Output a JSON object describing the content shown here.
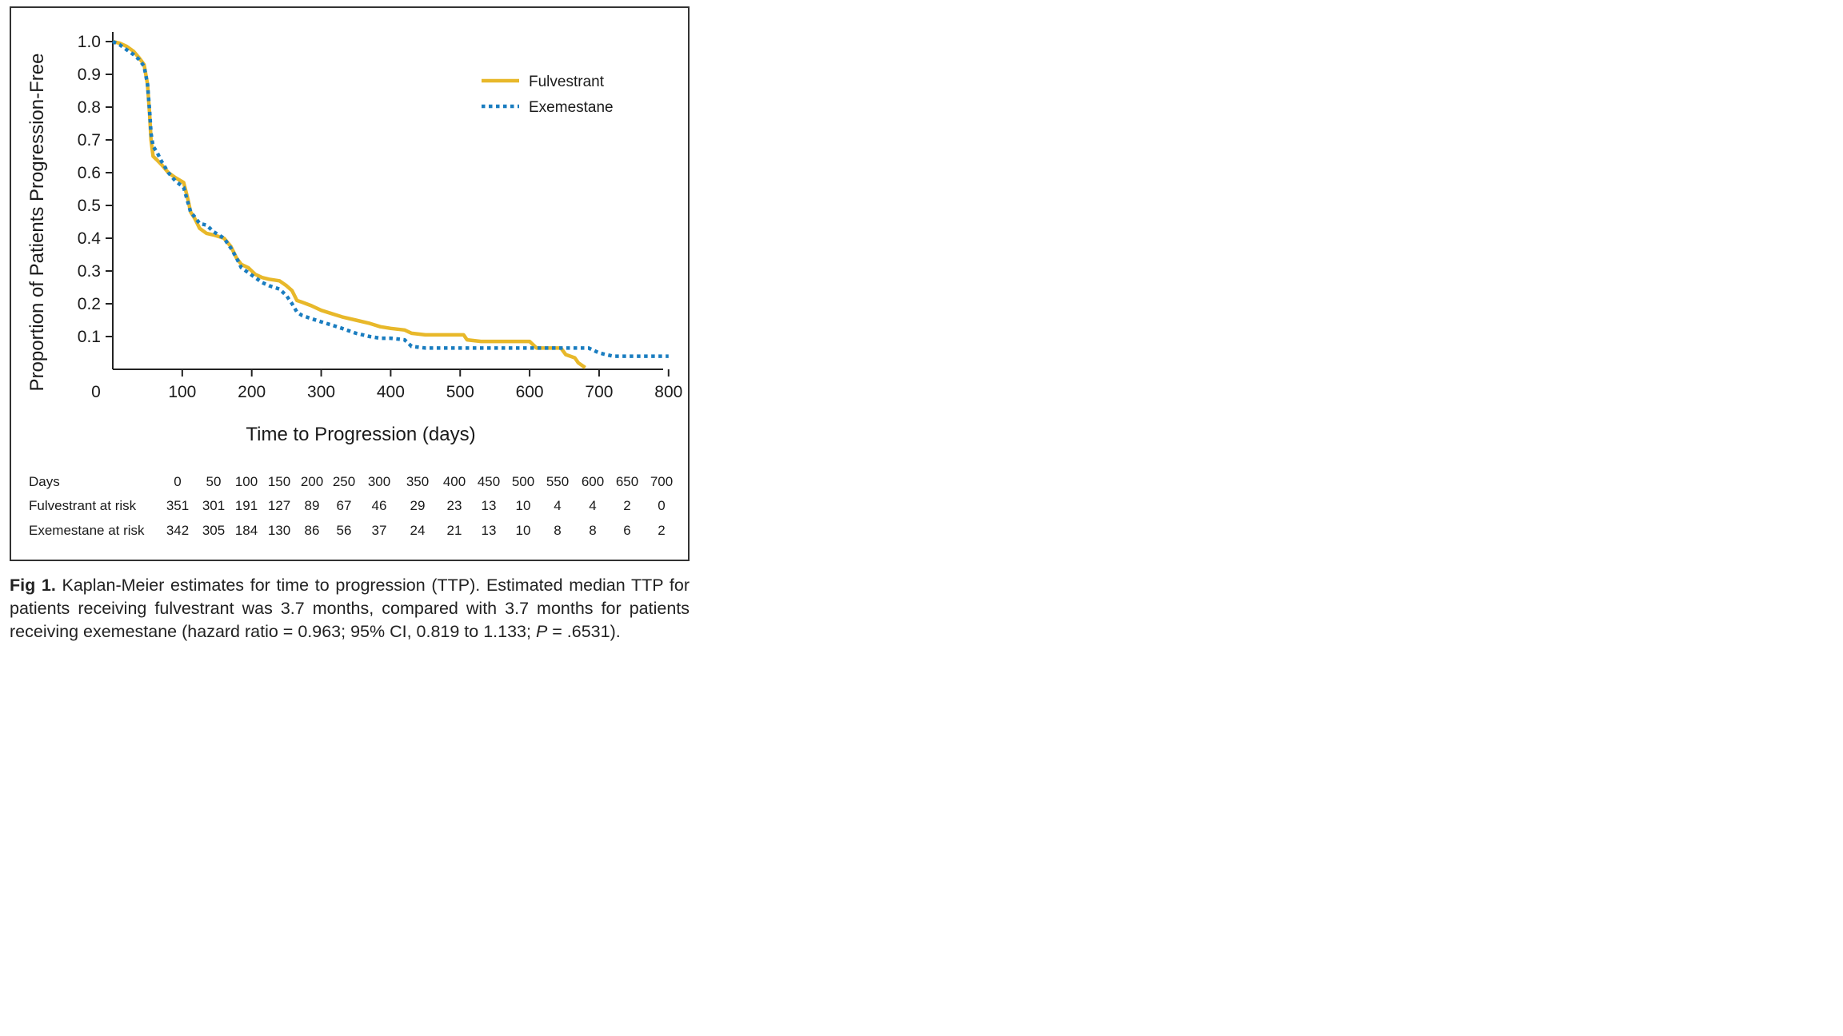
{
  "chart_data": {
    "type": "line",
    "ylabel": "Proportion of Patients Progression-Free",
    "xlabel": "Time to Progression (days)",
    "xlim": [
      0,
      800
    ],
    "ylim": [
      0,
      1.0
    ],
    "xticks": [
      0,
      100,
      200,
      300,
      400,
      500,
      600,
      700,
      800
    ],
    "yticks": [
      0.1,
      0.2,
      0.3,
      0.4,
      0.5,
      0.6,
      0.7,
      0.8,
      0.9,
      1.0
    ],
    "xtick_labels": [
      "0",
      "100",
      "200",
      "300",
      "400",
      "500",
      "600",
      "700",
      "800"
    ],
    "ytick_labels": [
      "0.1",
      "0.2",
      "0.3",
      "0.4",
      "0.5",
      "0.6",
      "0.7",
      "0.8",
      "0.9",
      "1.0"
    ],
    "grid": false,
    "legend": "top-right",
    "series": [
      {
        "name": "Fulvestrant",
        "color": "#E8B82A",
        "style": "solid",
        "points": [
          [
            0,
            1.0
          ],
          [
            10,
            0.995
          ],
          [
            20,
            0.985
          ],
          [
            30,
            0.97
          ],
          [
            38,
            0.95
          ],
          [
            45,
            0.93
          ],
          [
            50,
            0.87
          ],
          [
            53,
            0.78
          ],
          [
            55,
            0.7
          ],
          [
            58,
            0.65
          ],
          [
            63,
            0.64
          ],
          [
            70,
            0.625
          ],
          [
            80,
            0.6
          ],
          [
            90,
            0.585
          ],
          [
            102,
            0.57
          ],
          [
            108,
            0.52
          ],
          [
            112,
            0.48
          ],
          [
            118,
            0.46
          ],
          [
            125,
            0.43
          ],
          [
            135,
            0.415
          ],
          [
            145,
            0.41
          ],
          [
            160,
            0.4
          ],
          [
            170,
            0.375
          ],
          [
            178,
            0.34
          ],
          [
            185,
            0.32
          ],
          [
            195,
            0.31
          ],
          [
            205,
            0.29
          ],
          [
            215,
            0.28
          ],
          [
            225,
            0.275
          ],
          [
            240,
            0.27
          ],
          [
            250,
            0.255
          ],
          [
            258,
            0.24
          ],
          [
            265,
            0.21
          ],
          [
            272,
            0.205
          ],
          [
            285,
            0.195
          ],
          [
            300,
            0.18
          ],
          [
            315,
            0.17
          ],
          [
            330,
            0.16
          ],
          [
            350,
            0.15
          ],
          [
            370,
            0.14
          ],
          [
            385,
            0.13
          ],
          [
            400,
            0.125
          ],
          [
            420,
            0.12
          ],
          [
            430,
            0.11
          ],
          [
            450,
            0.105
          ],
          [
            470,
            0.105
          ],
          [
            505,
            0.105
          ],
          [
            510,
            0.09
          ],
          [
            530,
            0.085
          ],
          [
            560,
            0.085
          ],
          [
            600,
            0.085
          ],
          [
            610,
            0.065
          ],
          [
            645,
            0.065
          ],
          [
            652,
            0.045
          ],
          [
            665,
            0.035
          ],
          [
            670,
            0.02
          ],
          [
            680,
            0.005
          ]
        ]
      },
      {
        "name": "Exemestane",
        "color": "#1A7DC0",
        "style": "dotted",
        "points": [
          [
            0,
            1.0
          ],
          [
            10,
            0.99
          ],
          [
            20,
            0.975
          ],
          [
            30,
            0.96
          ],
          [
            38,
            0.945
          ],
          [
            45,
            0.925
          ],
          [
            50,
            0.87
          ],
          [
            53,
            0.79
          ],
          [
            55,
            0.72
          ],
          [
            58,
            0.68
          ],
          [
            63,
            0.665
          ],
          [
            70,
            0.635
          ],
          [
            80,
            0.6
          ],
          [
            90,
            0.575
          ],
          [
            102,
            0.555
          ],
          [
            108,
            0.51
          ],
          [
            112,
            0.48
          ],
          [
            118,
            0.465
          ],
          [
            125,
            0.445
          ],
          [
            135,
            0.44
          ],
          [
            145,
            0.42
          ],
          [
            160,
            0.4
          ],
          [
            170,
            0.37
          ],
          [
            178,
            0.34
          ],
          [
            185,
            0.31
          ],
          [
            195,
            0.295
          ],
          [
            205,
            0.28
          ],
          [
            215,
            0.265
          ],
          [
            225,
            0.255
          ],
          [
            240,
            0.245
          ],
          [
            250,
            0.225
          ],
          [
            258,
            0.2
          ],
          [
            265,
            0.175
          ],
          [
            272,
            0.165
          ],
          [
            285,
            0.155
          ],
          [
            300,
            0.145
          ],
          [
            315,
            0.135
          ],
          [
            330,
            0.125
          ],
          [
            350,
            0.11
          ],
          [
            370,
            0.1
          ],
          [
            385,
            0.095
          ],
          [
            400,
            0.095
          ],
          [
            420,
            0.09
          ],
          [
            430,
            0.07
          ],
          [
            450,
            0.065
          ],
          [
            470,
            0.065
          ],
          [
            505,
            0.065
          ],
          [
            530,
            0.065
          ],
          [
            560,
            0.065
          ],
          [
            600,
            0.065
          ],
          [
            610,
            0.065
          ],
          [
            650,
            0.065
          ],
          [
            665,
            0.065
          ],
          [
            685,
            0.065
          ],
          [
            700,
            0.05
          ],
          [
            720,
            0.04
          ],
          [
            760,
            0.04
          ],
          [
            800,
            0.04
          ]
        ]
      }
    ],
    "risk_table": {
      "header_label": "Days",
      "days": [
        "0",
        "50",
        "100",
        "150",
        "200",
        "250",
        "300",
        "350",
        "400",
        "450",
        "500",
        "550",
        "600",
        "650",
        "700"
      ],
      "rows": [
        {
          "label": "Fulvestrant at risk",
          "values": [
            "351",
            "301",
            "191",
            "127",
            "89",
            "67",
            "46",
            "29",
            "23",
            "13",
            "10",
            "4",
            "4",
            "2",
            "0"
          ]
        },
        {
          "label": "Exemestane at risk",
          "values": [
            "342",
            "305",
            "184",
            "130",
            "86",
            "56",
            "37",
            "24",
            "21",
            "13",
            "10",
            "8",
            "8",
            "6",
            "2"
          ]
        }
      ]
    }
  },
  "caption": {
    "label": "Fig 1.",
    "text_before_p": " Kaplan-Meier estimates for time to progression (TTP). Estimated median TTP for patients receiving fulvestrant was 3.7 months, compared with 3.7 months for patients receiving exemestane (hazard ratio = 0.963; 95% CI, 0.819 to 1.133; ",
    "p_symbol": "P",
    "text_after_p": " = .6531)."
  }
}
